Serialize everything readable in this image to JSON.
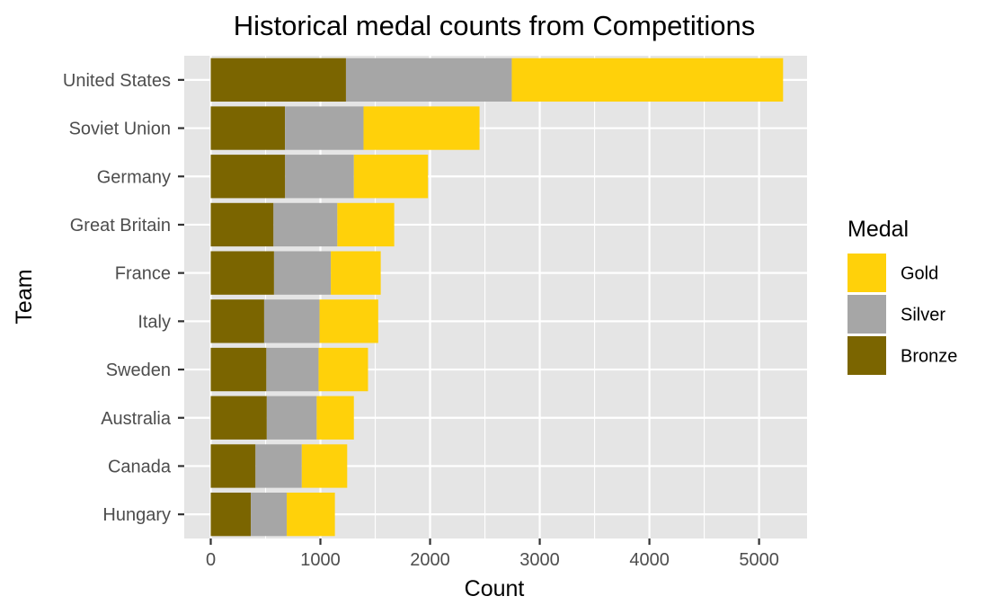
{
  "chart_data": {
    "type": "bar",
    "orientation": "horizontal",
    "stacked": true,
    "title": "Historical medal counts from Competitions",
    "xlabel": "Count",
    "ylabel": "Team",
    "xlim": [
      0,
      5500
    ],
    "xticks": [
      "0",
      "1000",
      "2000",
      "3000",
      "4000",
      "5000"
    ],
    "categories": [
      "United States",
      "Soviet Union",
      "Germany",
      "Great Britain",
      "France",
      "Italy",
      "Sweden",
      "Australia",
      "Canada",
      "Hungary"
    ],
    "series": [
      {
        "name": "Bronze",
        "color": "#7B6500",
        "values": [
          1233,
          677,
          678,
          572,
          577,
          487,
          507,
          511,
          408,
          365
        ]
      },
      {
        "name": "Silver",
        "color": "#A6A6A6",
        "values": [
          1512,
          716,
          627,
          582,
          518,
          505,
          476,
          455,
          422,
          328
        ]
      },
      {
        "name": "Gold",
        "color": "#FFD10A",
        "values": [
          2474,
          1058,
          676,
          519,
          455,
          535,
          451,
          339,
          414,
          439
        ]
      }
    ],
    "grid": true,
    "legend": {
      "title": "Medal",
      "placement": "right",
      "items": [
        {
          "label": "Gold",
          "color": "#FFD10A"
        },
        {
          "label": "Silver",
          "color": "#A6A6A6"
        },
        {
          "label": "Bronze",
          "color": "#7B6500"
        }
      ]
    },
    "panel_color": "#E5E5E5",
    "grid_color": "#FFFFFF"
  }
}
